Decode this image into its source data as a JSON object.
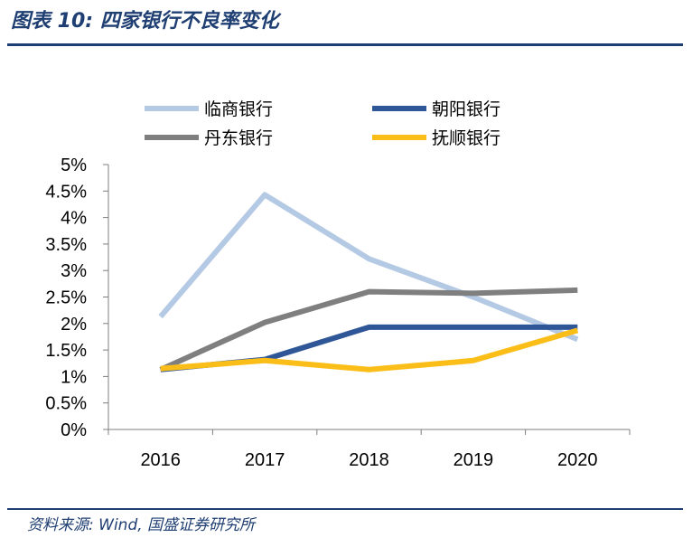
{
  "figure": {
    "title": "图表 10:  四家银行不良率变化",
    "source": "资料来源:  Wind,  国盛证券研究所"
  },
  "chart_data": {
    "type": "line",
    "title": "",
    "xlabel": "",
    "ylabel": "",
    "categories": [
      "2016",
      "2017",
      "2018",
      "2019",
      "2020"
    ],
    "y_ticks": [
      "0%",
      "0.5%",
      "1%",
      "1.5%",
      "2%",
      "2.5%",
      "3%",
      "3.5%",
      "4%",
      "4.5%",
      "5%"
    ],
    "ylim": [
      0,
      5
    ],
    "grid": false,
    "legend_position": "top",
    "series": [
      {
        "name": "临商银行",
        "color": "#b4c9e4",
        "values": [
          2.13,
          4.43,
          3.22,
          2.5,
          1.7
        ]
      },
      {
        "name": "朝阳银行",
        "color": "#2f5797",
        "values": [
          1.13,
          1.32,
          1.93,
          1.93,
          1.93
        ]
      },
      {
        "name": "丹东银行",
        "color": "#7f7f7f",
        "values": [
          1.13,
          2.02,
          2.6,
          2.57,
          2.63
        ]
      },
      {
        "name": "抚顺银行",
        "color": "#fbbe19",
        "values": [
          1.15,
          1.3,
          1.13,
          1.3,
          1.87
        ]
      }
    ]
  }
}
